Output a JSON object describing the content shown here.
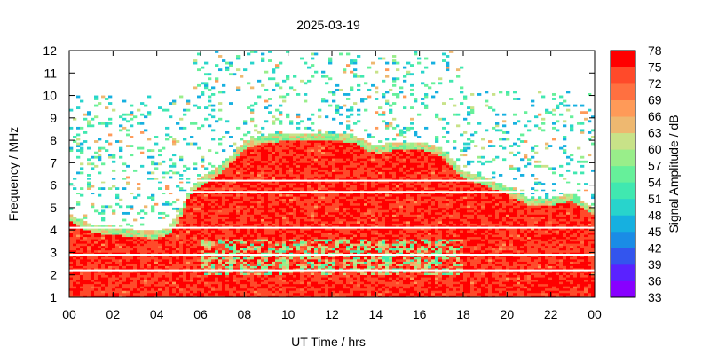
{
  "chart_data": {
    "type": "heatmap",
    "title": "2025-03-19",
    "xlabel": "UT Time / hrs",
    "ylabel": "Frequency / MHz",
    "colorbar_label": "Signal Amplitude / dB",
    "xlim": [
      0,
      24
    ],
    "ylim": [
      1,
      12
    ],
    "x_ticks": [
      "00",
      "02",
      "04",
      "06",
      "08",
      "10",
      "12",
      "14",
      "16",
      "18",
      "20",
      "22",
      "00"
    ],
    "y_ticks": [
      "1",
      "2",
      "3",
      "4",
      "5",
      "6",
      "7",
      "8",
      "9",
      "10",
      "11",
      "12"
    ],
    "colorbar_ticks": [
      "78",
      "75",
      "72",
      "69",
      "66",
      "63",
      "60",
      "57",
      "54",
      "51",
      "48",
      "45",
      "42",
      "39",
      "36",
      "33"
    ],
    "colorbar_range": [
      33,
      78
    ],
    "colors": [
      "#8800ff",
      "#5a22ff",
      "#3355ee",
      "#1a8ce6",
      "#16b0e0",
      "#28d4cc",
      "#40e8b0",
      "#66f09a",
      "#99ee8a",
      "#c8e288",
      "#eeb870",
      "#ff9a58",
      "#ff7040",
      "#ff4a2a",
      "#ff0000"
    ],
    "max_usable_frequency_profile": {
      "hours": [
        0,
        1,
        2,
        3,
        4,
        4.5,
        5,
        5.5,
        6,
        7,
        8,
        9,
        10,
        11,
        12,
        13,
        14,
        15,
        16,
        17,
        18,
        19,
        20,
        21,
        22,
        23,
        24
      ],
      "mhz": [
        4.4,
        3.9,
        3.8,
        3.7,
        3.6,
        3.8,
        4.4,
        5.5,
        6.0,
        6.6,
        7.6,
        7.9,
        8.0,
        8.0,
        8.0,
        7.9,
        7.4,
        7.6,
        7.6,
        7.3,
        6.3,
        6.0,
        5.6,
        5.1,
        5.1,
        5.3,
        4.6
      ],
      "amplitude_db": 78
    },
    "noise_band_upper_mhz": {
      "hours": [
        0,
        5.6,
        5.6,
        18,
        18,
        24
      ],
      "mhz": [
        10,
        10,
        12,
        12,
        10.2,
        10.2
      ]
    }
  }
}
